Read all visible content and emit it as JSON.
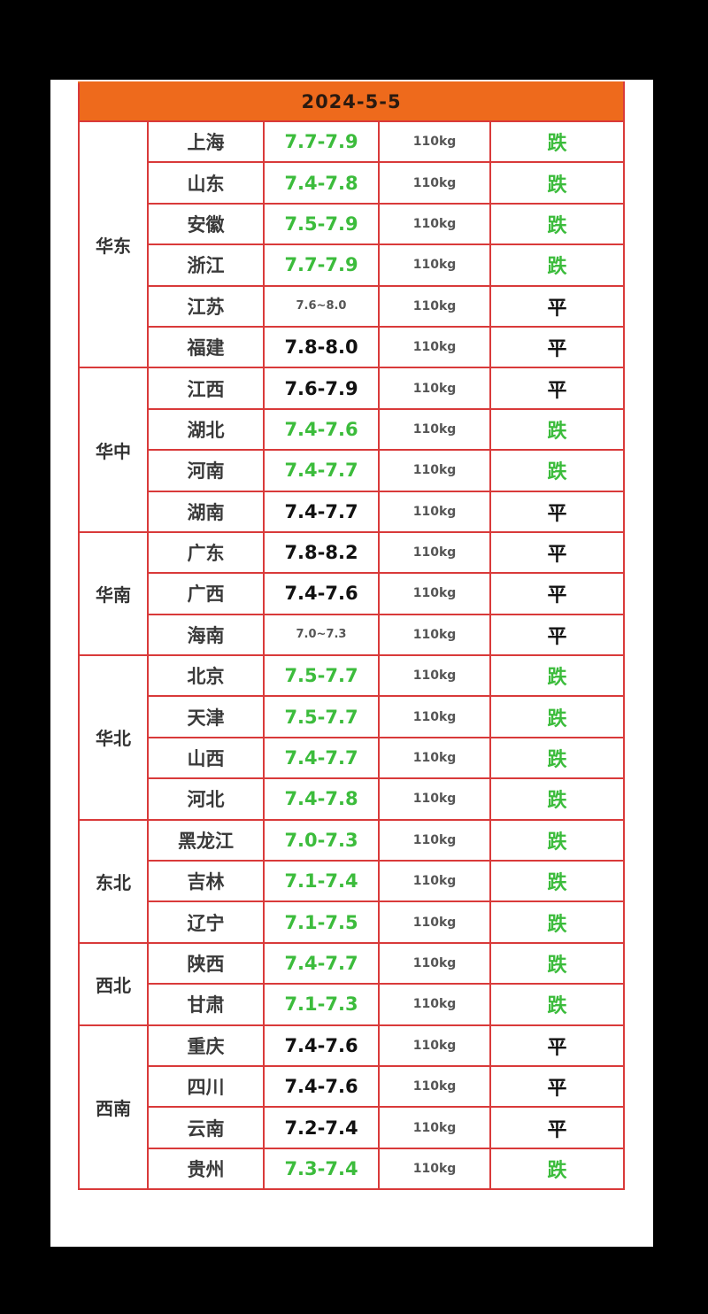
{
  "header": {
    "date": "2024-5-5"
  },
  "colors": {
    "header_bg": "#ee6a1c",
    "border": "#d93a3a",
    "fall": "#3cbc3c",
    "flat": "#111111"
  },
  "groups": [
    {
      "region": "华东",
      "rows": [
        {
          "province": "上海",
          "price": "7.7-7.9",
          "weight": "110kg",
          "trend": "跌"
        },
        {
          "province": "山东",
          "price": "7.4-7.8",
          "weight": "110kg",
          "trend": "跌"
        },
        {
          "province": "安徽",
          "price": "7.5-7.9",
          "weight": "110kg",
          "trend": "跌"
        },
        {
          "province": "浙江",
          "price": "7.7-7.9",
          "weight": "110kg",
          "trend": "跌"
        },
        {
          "province": "江苏",
          "price": "7.6~8.0",
          "weight": "110kg",
          "trend": "平",
          "small": true
        },
        {
          "province": "福建",
          "price": "7.8-8.0",
          "weight": "110kg",
          "trend": "平"
        }
      ]
    },
    {
      "region": "华中",
      "rows": [
        {
          "province": "江西",
          "price": "7.6-7.9",
          "weight": "110kg",
          "trend": "平"
        },
        {
          "province": "湖北",
          "price": "7.4-7.6",
          "weight": "110kg",
          "trend": "跌"
        },
        {
          "province": "河南",
          "price": "7.4-7.7",
          "weight": "110kg",
          "trend": "跌"
        },
        {
          "province": "湖南",
          "price": "7.4-7.7",
          "weight": "110kg",
          "trend": "平"
        }
      ]
    },
    {
      "region": "华南",
      "rows": [
        {
          "province": "广东",
          "price": "7.8-8.2",
          "weight": "110kg",
          "trend": "平"
        },
        {
          "province": "广西",
          "price": "7.4-7.6",
          "weight": "110kg",
          "trend": "平"
        },
        {
          "province": "海南",
          "price": "7.0~7.3",
          "weight": "110kg",
          "trend": "平",
          "small": true
        }
      ]
    },
    {
      "region": "华北",
      "rows": [
        {
          "province": "北京",
          "price": "7.5-7.7",
          "weight": "110kg",
          "trend": "跌"
        },
        {
          "province": "天津",
          "price": "7.5-7.7",
          "weight": "110kg",
          "trend": "跌"
        },
        {
          "province": "山西",
          "price": "7.4-7.7",
          "weight": "110kg",
          "trend": "跌"
        },
        {
          "province": "河北",
          "price": "7.4-7.8",
          "weight": "110kg",
          "trend": "跌"
        }
      ]
    },
    {
      "region": "东北",
      "rows": [
        {
          "province": "黑龙江",
          "price": "7.0-7.3",
          "weight": "110kg",
          "trend": "跌"
        },
        {
          "province": "吉林",
          "price": "7.1-7.4",
          "weight": "110kg",
          "trend": "跌"
        },
        {
          "province": "辽宁",
          "price": "7.1-7.5",
          "weight": "110kg",
          "trend": "跌"
        }
      ]
    },
    {
      "region": "西北",
      "rows": [
        {
          "province": "陕西",
          "price": "7.4-7.7",
          "weight": "110kg",
          "trend": "跌"
        },
        {
          "province": "甘肃",
          "price": "7.1-7.3",
          "weight": "110kg",
          "trend": "跌"
        }
      ]
    },
    {
      "region": "西南",
      "rows": [
        {
          "province": "重庆",
          "price": "7.4-7.6",
          "weight": "110kg",
          "trend": "平"
        },
        {
          "province": "四川",
          "price": "7.4-7.6",
          "weight": "110kg",
          "trend": "平"
        },
        {
          "province": "云南",
          "price": "7.2-7.4",
          "weight": "110kg",
          "trend": "平"
        },
        {
          "province": "贵州",
          "price": "7.3-7.4",
          "weight": "110kg",
          "trend": "跌"
        }
      ]
    }
  ]
}
